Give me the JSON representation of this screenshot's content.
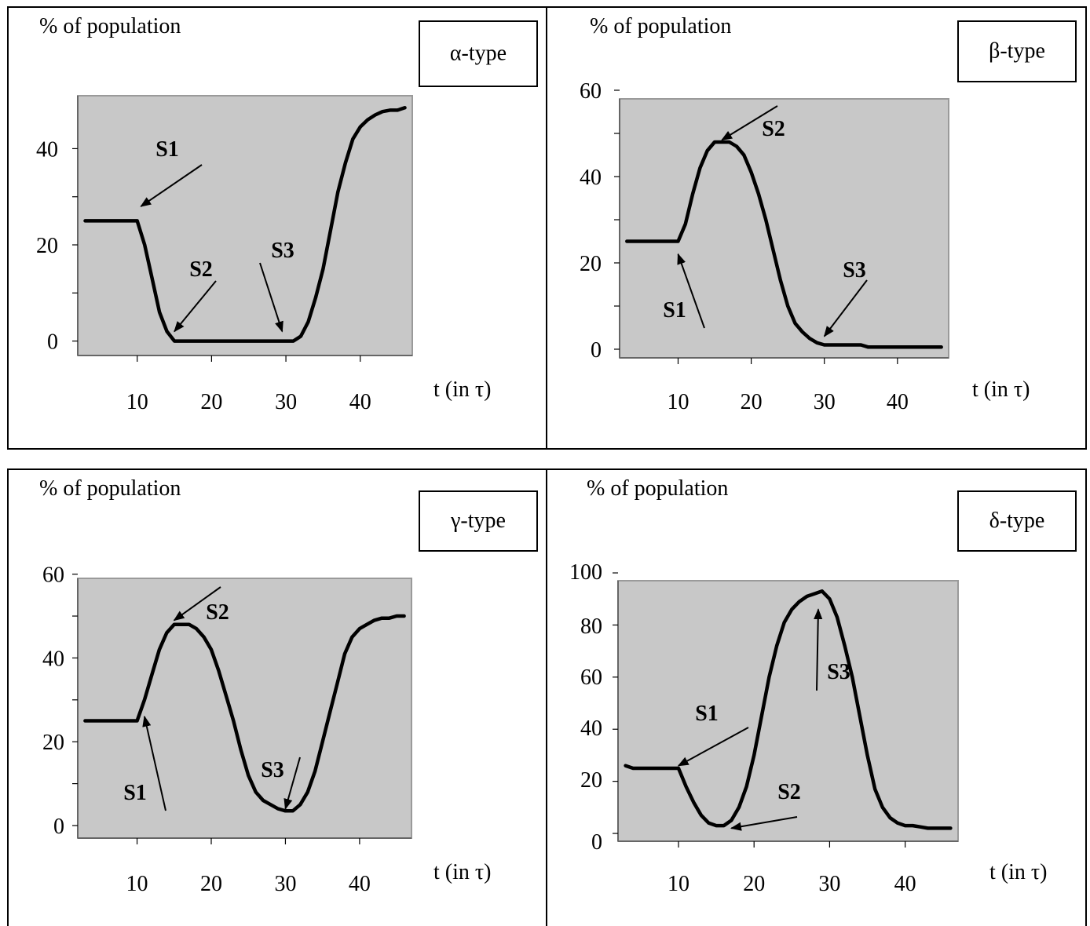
{
  "chart_data": [
    {
      "type": "line",
      "legend": "α-type",
      "ylabel": "% of population",
      "xlabel": "t (in τ)",
      "xlim": [
        2,
        47
      ],
      "ylim": [
        -3,
        51
      ],
      "xticks": [
        10,
        20,
        30,
        40
      ],
      "yticks": [
        0,
        20,
        40
      ],
      "yminor": [
        10,
        30
      ],
      "series": [
        {
          "x": [
            3,
            4,
            5,
            6,
            7,
            8,
            9,
            10,
            11,
            12,
            13,
            14,
            15,
            16,
            18,
            20,
            22,
            24,
            26,
            28,
            30,
            31,
            32,
            33,
            34,
            35,
            36,
            37,
            38,
            39,
            40,
            41,
            42,
            43,
            44,
            45,
            46
          ],
          "y": [
            25,
            25,
            25,
            25,
            25,
            25,
            25,
            25,
            20,
            13,
            6,
            2,
            0,
            0,
            0,
            0,
            0,
            0,
            0,
            0,
            0,
            0,
            1,
            4,
            9,
            15,
            23,
            31,
            37,
            42,
            44.5,
            46,
            47,
            47.7,
            48,
            48,
            48.5
          ]
        }
      ],
      "annotations": [
        {
          "text": "S1",
          "target": [
            10.5,
            28
          ]
        },
        {
          "text": "S2",
          "target": [
            15,
            2
          ]
        },
        {
          "text": "S3",
          "target": [
            29.5,
            2
          ]
        }
      ]
    },
    {
      "type": "line",
      "legend": "β-type",
      "ylabel": "% of population",
      "xlabel": "t (in τ)",
      "xlim": [
        2,
        47
      ],
      "ylim": [
        -2,
        58
      ],
      "xticks": [
        10,
        20,
        30,
        40
      ],
      "yticks": [
        0,
        20,
        40,
        60
      ],
      "yminor": [
        10,
        30,
        50
      ],
      "series": [
        {
          "x": [
            3,
            4,
            5,
            6,
            7,
            8,
            9,
            10,
            11,
            12,
            13,
            14,
            15,
            16,
            17,
            18,
            19,
            20,
            21,
            22,
            23,
            24,
            25,
            26,
            27,
            28,
            29,
            30,
            31,
            32,
            33,
            34,
            35,
            36,
            38,
            40,
            42,
            44,
            46
          ],
          "y": [
            25,
            25,
            25,
            25,
            25,
            25,
            25,
            25,
            29,
            36,
            42,
            46,
            48,
            48,
            48,
            47,
            45,
            41,
            36,
            30,
            23,
            16,
            10,
            6,
            4,
            2.5,
            1.5,
            1,
            1,
            1,
            1,
            1,
            1,
            0.5,
            0.5,
            0.5,
            0.5,
            0.5,
            0.5
          ]
        }
      ],
      "annotations": [
        {
          "text": "S1",
          "target": [
            10,
            22
          ]
        },
        {
          "text": "S2",
          "target": [
            16,
            48.5
          ]
        },
        {
          "text": "S3",
          "target": [
            30,
            3
          ]
        }
      ]
    },
    {
      "type": "line",
      "legend": "γ-type",
      "ylabel": "% of population",
      "xlabel": "t (in τ)",
      "xlim": [
        2,
        47
      ],
      "ylim": [
        -3,
        59
      ],
      "xticks": [
        10,
        20,
        30,
        40
      ],
      "yticks": [
        0,
        20,
        40,
        60
      ],
      "yminor": [
        10,
        30,
        50
      ],
      "series": [
        {
          "x": [
            3,
            4,
            5,
            6,
            7,
            8,
            9,
            10,
            11,
            12,
            13,
            14,
            15,
            16,
            17,
            18,
            19,
            20,
            21,
            22,
            23,
            24,
            25,
            26,
            27,
            28,
            29,
            30,
            31,
            32,
            33,
            34,
            35,
            36,
            37,
            38,
            39,
            40,
            41,
            42,
            43,
            44,
            45,
            46
          ],
          "y": [
            25,
            25,
            25,
            25,
            25,
            25,
            25,
            25,
            30,
            36,
            42,
            46,
            48,
            48,
            48,
            47,
            45,
            42,
            37,
            31,
            25,
            18,
            12,
            8,
            6,
            5,
            4,
            3.5,
            3.5,
            5,
            8,
            13,
            20,
            27,
            34,
            41,
            45,
            47,
            48,
            49,
            49.5,
            49.5,
            50,
            50
          ]
        }
      ],
      "annotations": [
        {
          "text": "S1",
          "target": [
            11,
            26
          ]
        },
        {
          "text": "S2",
          "target": [
            15,
            49
          ]
        },
        {
          "text": "S3",
          "target": [
            30,
            4
          ]
        }
      ]
    },
    {
      "type": "line",
      "legend": "δ-type",
      "ylabel": "% of population",
      "xlabel": "t (in τ)",
      "xlim": [
        2,
        47
      ],
      "ylim": [
        -3,
        97
      ],
      "xticks": [
        10,
        20,
        30,
        40
      ],
      "yticks": [
        0,
        20,
        40,
        60,
        80,
        100
      ],
      "yminor": [],
      "series": [
        {
          "x": [
            3,
            4,
            5,
            6,
            7,
            8,
            9,
            10,
            11,
            12,
            13,
            14,
            15,
            16,
            17,
            18,
            19,
            20,
            21,
            22,
            23,
            24,
            25,
            26,
            27,
            28,
            29,
            30,
            31,
            32,
            33,
            34,
            35,
            36,
            37,
            38,
            39,
            40,
            41,
            42,
            43,
            44,
            45,
            46
          ],
          "y": [
            26,
            25,
            25,
            25,
            25,
            25,
            25,
            25,
            18,
            12,
            7,
            4,
            3,
            3,
            5,
            10,
            18,
            30,
            45,
            60,
            72,
            81,
            86,
            89,
            91,
            92,
            93,
            90,
            83,
            72,
            60,
            45,
            30,
            17,
            10,
            6,
            4,
            3,
            3,
            2.5,
            2,
            2,
            2,
            2
          ]
        }
      ],
      "annotations": [
        {
          "text": "S1",
          "target": [
            10,
            26
          ]
        },
        {
          "text": "S2",
          "target": [
            17,
            2
          ]
        },
        {
          "text": "S3",
          "target": [
            28.5,
            86
          ]
        }
      ]
    }
  ]
}
